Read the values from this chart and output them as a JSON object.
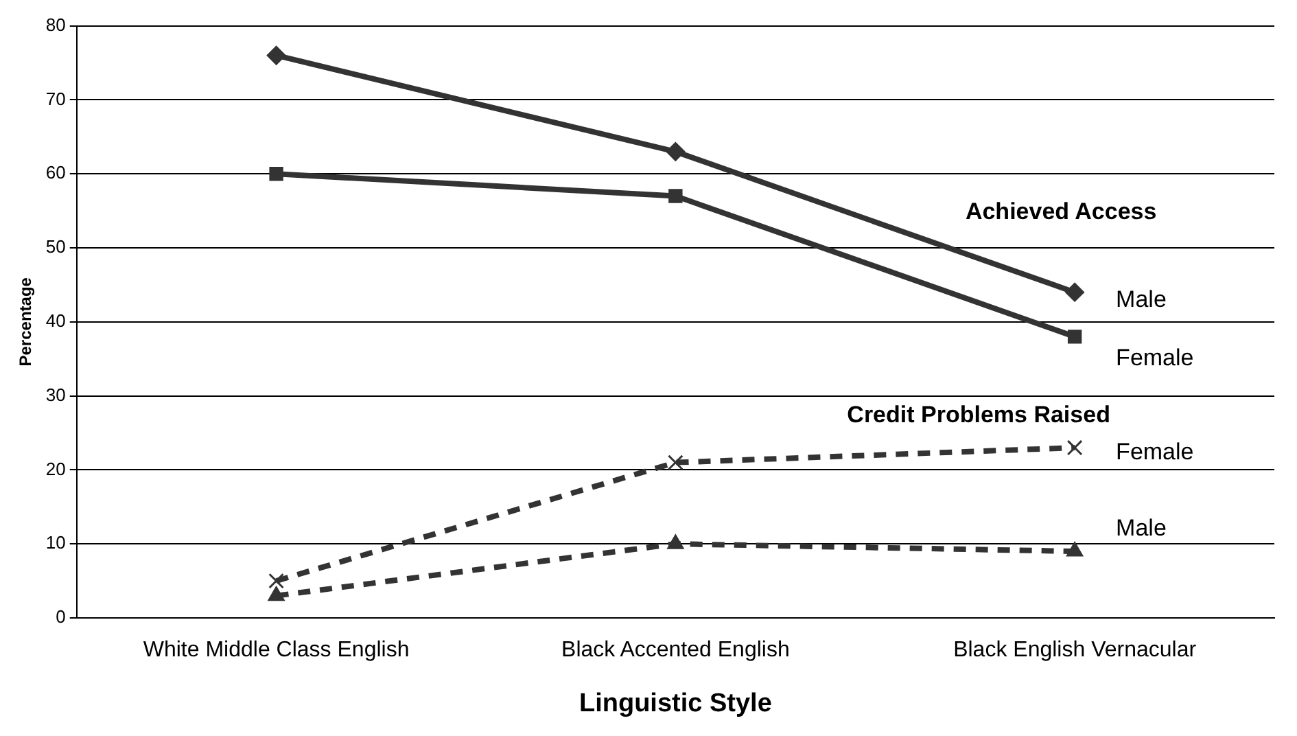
{
  "chart_data": {
    "type": "line",
    "xlabel": "Linguistic Style",
    "ylabel": "Percentage",
    "categories": [
      "White Middle Class English",
      "Black Accented English",
      "Black English Vernacular"
    ],
    "series": [
      {
        "name": "Male",
        "color": "#333333",
        "values": [
          76,
          63,
          44
        ],
        "marker": "diamond",
        "line_style": "solid"
      },
      {
        "name": "Female",
        "color": "#333333",
        "values": [
          60,
          57,
          38
        ],
        "marker": "square",
        "line_style": "solid"
      },
      {
        "name": "Female",
        "color": "#333333",
        "values": [
          5,
          21,
          23
        ],
        "marker": "cross",
        "line_style": "dashed"
      },
      {
        "name": "Male",
        "color": "#333333",
        "values": [
          3,
          10,
          9
        ],
        "marker": "triangle",
        "line_style": "dashed"
      }
    ],
    "annotations": [
      "Achieved Access",
      "Credit Problems Raised"
    ],
    "ylim": [
      0,
      80
    ],
    "yticks": [
      0,
      10,
      20,
      30,
      40,
      50,
      60,
      70,
      80
    ],
    "grid": "y",
    "legend": false
  }
}
